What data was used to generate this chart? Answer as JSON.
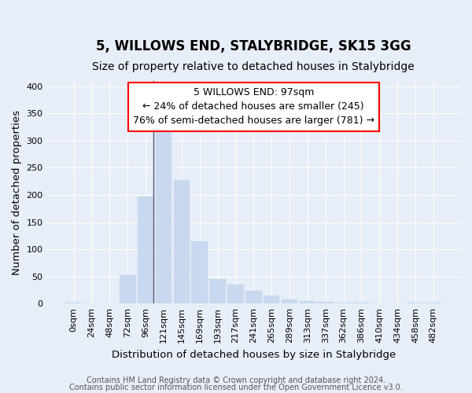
{
  "title": "5, WILLOWS END, STALYBRIDGE, SK15 3GG",
  "subtitle": "Size of property relative to detached houses in Stalybridge",
  "xlabel": "Distribution of detached houses by size in Stalybridge",
  "ylabel": "Number of detached properties",
  "categories": [
    "0sqm",
    "24sqm",
    "48sqm",
    "72sqm",
    "96sqm",
    "121sqm",
    "145sqm",
    "169sqm",
    "193sqm",
    "217sqm",
    "241sqm",
    "265sqm",
    "289sqm",
    "313sqm",
    "337sqm",
    "362sqm",
    "386sqm",
    "410sqm",
    "434sqm",
    "458sqm",
    "482sqm"
  ],
  "values": [
    2,
    0,
    0,
    52,
    197,
    318,
    227,
    115,
    45,
    35,
    24,
    15,
    7,
    4,
    3,
    2,
    2,
    0,
    0,
    2,
    2
  ],
  "bar_color": "#c8d8ee",
  "bar_edge_color": "#c8d8ee",
  "vline_bar_index": 4,
  "ylim": [
    0,
    410
  ],
  "yticks": [
    0,
    50,
    100,
    150,
    200,
    250,
    300,
    350,
    400
  ],
  "annotation_text_line1": "5 WILLOWS END: 97sqm",
  "annotation_text_line2": "← 24% of detached houses are smaller (245)",
  "annotation_text_line3": "76% of semi-detached houses are larger (781) →",
  "footer_line1": "Contains HM Land Registry data © Crown copyright and database right 2024.",
  "footer_line2": "Contains public sector information licensed under the Open Government Licence v3.0.",
  "bg_color": "#e8eef8",
  "grid_color": "#ffffff",
  "title_fontsize": 12,
  "subtitle_fontsize": 10,
  "axis_label_fontsize": 9.5,
  "tick_fontsize": 8,
  "footer_fontsize": 7,
  "annotation_fontsize": 9
}
